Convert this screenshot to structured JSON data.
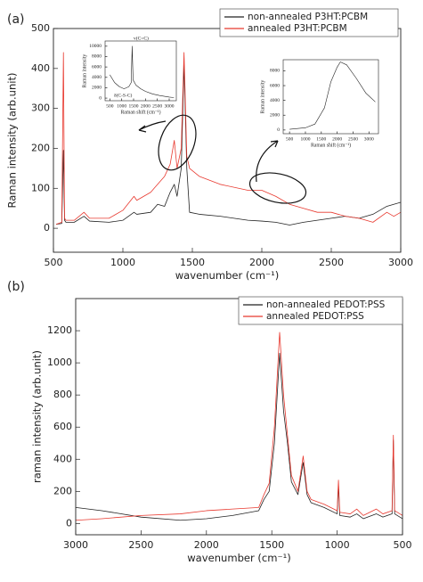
{
  "chart_data": [
    {
      "type": "line",
      "label": "(a)",
      "x_label": "wavenumber (cm⁻¹)",
      "y_label": "Raman intensity (arb.unit)",
      "x": [
        520,
        560,
        572,
        580,
        590,
        650,
        720,
        760,
        900,
        1000,
        1080,
        1100,
        1200,
        1250,
        1300,
        1340,
        1370,
        1390,
        1420,
        1440,
        1460,
        1480,
        1550,
        1700,
        1900,
        2000,
        2100,
        2200,
        2300,
        2400,
        2500,
        2600,
        2700,
        2800,
        2900,
        2950,
        3000
      ],
      "series": [
        {
          "name": "non-annealed P3HT:PCBM",
          "color": "#222222",
          "values": [
            10,
            12,
            195,
            20,
            15,
            15,
            30,
            18,
            15,
            20,
            40,
            35,
            40,
            60,
            55,
            90,
            110,
            80,
            150,
            410,
            150,
            40,
            35,
            30,
            20,
            18,
            15,
            8,
            15,
            20,
            25,
            30,
            25,
            35,
            55,
            60,
            65
          ]
        },
        {
          "name": "annealed P3HT:PCBM",
          "color": "#e8392f",
          "values": [
            10,
            15,
            440,
            25,
            20,
            20,
            40,
            25,
            25,
            45,
            80,
            70,
            90,
            110,
            130,
            160,
            220,
            150,
            200,
            440,
            180,
            150,
            130,
            110,
            95,
            95,
            80,
            60,
            50,
            40,
            40,
            30,
            25,
            15,
            40,
            30,
            40
          ]
        }
      ],
      "xlim": [
        500,
        3000
      ],
      "xticks": [
        500,
        1000,
        1500,
        2000,
        2500,
        3000
      ],
      "ylim": [
        -60,
        500
      ],
      "yticks": [
        0,
        100,
        200,
        300,
        400,
        500
      ],
      "legend": "upper right"
    },
    {
      "type": "line",
      "x_label": "Raman shift (cm⁻¹)",
      "y_label": "Raman intensity",
      "annotations": [
        "v(C=C)",
        "δ(C-S-C)"
      ],
      "x": [
        500,
        700,
        900,
        1100,
        1300,
        1400,
        1440,
        1480,
        1600,
        1800,
        2000,
        2300,
        2600,
        3000,
        3200
      ],
      "series": [
        {
          "color": "#222222",
          "values": [
            4500,
            3000,
            2200,
            1800,
            2200,
            3000,
            10000,
            3500,
            2500,
            1800,
            1300,
            800,
            500,
            200,
            100
          ]
        }
      ],
      "xlim": [
        300,
        3300
      ],
      "xticks": [
        500,
        1000,
        1500,
        2000,
        2500,
        3000
      ],
      "ylim": [
        -500,
        11000
      ],
      "yticks": [
        0,
        2000,
        4000,
        6000,
        8000,
        10000
      ]
    },
    {
      "type": "line",
      "x_label": "Raman shift (cm⁻¹)",
      "y_label": "Raman intensity",
      "x": [
        500,
        1000,
        1300,
        1600,
        1800,
        2000,
        2100,
        2300,
        2600,
        2900,
        3200
      ],
      "series": [
        {
          "color": "#222222",
          "values": [
            100,
            300,
            800,
            3000,
            6500,
            8500,
            9200,
            8800,
            7000,
            5000,
            3800
          ]
        }
      ],
      "xlim": [
        300,
        3300
      ],
      "xticks": [
        500,
        1000,
        1500,
        2000,
        2500,
        3000
      ],
      "ylim": [
        -500,
        9500
      ],
      "yticks": [
        0,
        2000,
        4000,
        6000,
        8000
      ]
    },
    {
      "type": "line",
      "label": "(b)",
      "x_label": "wavenumber (cm⁻¹)",
      "y_label": "raman intensity (arb.unit)",
      "x": [
        3000,
        2800,
        2500,
        2200,
        2000,
        1800,
        1600,
        1560,
        1520,
        1480,
        1440,
        1410,
        1380,
        1350,
        1300,
        1260,
        1230,
        1200,
        1100,
        1000,
        990,
        980,
        900,
        850,
        800,
        700,
        650,
        580,
        570,
        560,
        520,
        500
      ],
      "series": [
        {
          "name": "non-annealed PEDOT:PSS",
          "color": "#222222",
          "values": [
            100,
            80,
            40,
            20,
            30,
            50,
            80,
            150,
            200,
            500,
            1060,
            700,
            500,
            260,
            180,
            380,
            180,
            130,
            100,
            60,
            240,
            50,
            40,
            60,
            30,
            60,
            40,
            60,
            520,
            60,
            40,
            30
          ]
        },
        {
          "name": "annealed PEDOT:PSS",
          "color": "#e8392f",
          "values": [
            20,
            30,
            50,
            60,
            80,
            90,
            100,
            180,
            250,
            600,
            1190,
            800,
            550,
            300,
            200,
            420,
            200,
            150,
            120,
            80,
            270,
            70,
            60,
            90,
            50,
            90,
            60,
            80,
            550,
            80,
            60,
            50
          ]
        }
      ],
      "xlim": [
        3000,
        500
      ],
      "xticks": [
        3000,
        2500,
        2000,
        1500,
        1000,
        500
      ],
      "ylim": [
        -70,
        1400
      ],
      "yticks": [
        0,
        200,
        400,
        600,
        800,
        1000,
        1200
      ],
      "legend": "upper right"
    }
  ]
}
